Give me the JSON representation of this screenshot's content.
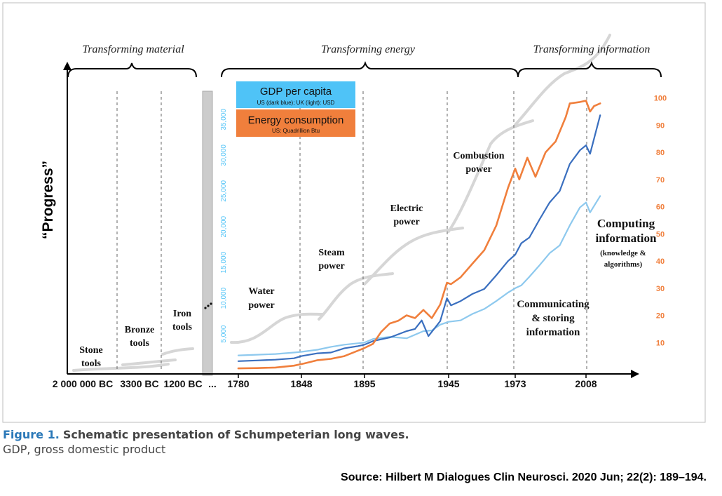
{
  "chart_data": {
    "type": "line",
    "ylabel": "“Progress”",
    "eras": [
      "Transforming material",
      "Transforming energy",
      "Transforming information"
    ],
    "x_ticks": [
      "2 000 000 BC",
      "3300 BC",
      "1200 BC",
      "...",
      "1780",
      "1848",
      "1895",
      "1945",
      "1973",
      "2008"
    ],
    "left_axis": {
      "color": "#4fc3f7",
      "ticks": [
        "5,000",
        "10,000",
        "15,000",
        "20,000",
        "25,000",
        "30,000",
        "35,000"
      ],
      "range": [
        0,
        37000
      ]
    },
    "right_axis": {
      "color": "#f07f3c",
      "ticks": [
        "10",
        "20",
        "30",
        "40",
        "50",
        "60",
        "70",
        "80",
        "90",
        "100"
      ],
      "range": [
        0,
        103
      ]
    },
    "legend": {
      "gdp_title": "GDP per capita",
      "gdp_sub": "US (dark blue); UK (light): USD",
      "energy_title": "Energy consumption",
      "energy_sub": "US: Quadrillion Btu"
    },
    "era_labels": {
      "stone": [
        "Stone",
        "tools"
      ],
      "bronze": [
        "Bronze",
        "tools"
      ],
      "iron": [
        "Iron",
        "tools"
      ],
      "water": [
        "Water",
        "power"
      ],
      "steam": [
        "Steam",
        "power"
      ],
      "electric": [
        "Electric",
        "power"
      ],
      "combustion": [
        "Combustion",
        "power"
      ],
      "communicating": [
        "Communicating",
        "& storing",
        "information"
      ],
      "computing": [
        "Computing",
        "information"
      ],
      "computing_sub": [
        "(knowledge &",
        "algorithms)"
      ]
    },
    "series": [
      {
        "name": "US",
        "unit": "USD",
        "axis": "left",
        "color": "#3a6fbf",
        "x": [
          1780,
          1800,
          1820,
          1840,
          1848,
          1860,
          1870,
          1880,
          1890,
          1895,
          1900,
          1910,
          1920,
          1925,
          1929,
          1933,
          1937,
          1940,
          1944,
          1946,
          1950,
          1955,
          1960,
          1965,
          1970,
          1973,
          1976,
          1980,
          1985,
          1990,
          1995,
          2000,
          2005,
          2008,
          2010,
          2015
        ],
        "y": [
          1200,
          1300,
          1400,
          1600,
          1900,
          2300,
          2400,
          3000,
          3300,
          3500,
          4000,
          4500,
          5400,
          5700,
          6900,
          4700,
          5900,
          6800,
          10000,
          9000,
          9600,
          10600,
          11300,
          13200,
          15200,
          16100,
          17700,
          18500,
          21000,
          23400,
          25000,
          28800,
          30700,
          31400,
          30200,
          35600
        ]
      },
      {
        "name": "UK",
        "unit": "USD",
        "axis": "left",
        "color": "#8ec9ee",
        "x": [
          1780,
          1800,
          1820,
          1840,
          1848,
          1860,
          1870,
          1880,
          1890,
          1895,
          1900,
          1910,
          1920,
          1925,
          1930,
          1935,
          1940,
          1945,
          1950,
          1955,
          1960,
          1965,
          1970,
          1973,
          1976,
          1980,
          1985,
          1990,
          1995,
          2000,
          2005,
          2008,
          2010,
          2015
        ],
        "y": [
          2000,
          2100,
          2200,
          2400,
          2500,
          2800,
          3200,
          3500,
          3700,
          3800,
          4300,
          4600,
          4400,
          4900,
          5400,
          5500,
          6300,
          6700,
          6900,
          7800,
          8500,
          9600,
          10800,
          11400,
          11800,
          13000,
          14600,
          16300,
          17400,
          20200,
          22700,
          23400,
          22000,
          24300
        ]
      },
      {
        "name": "Energy",
        "unit": "Quadrillion Btu",
        "axis": "right",
        "color": "#f07f3c",
        "x": [
          1780,
          1800,
          1820,
          1840,
          1850,
          1860,
          1870,
          1880,
          1890,
          1895,
          1900,
          1905,
          1910,
          1915,
          1920,
          1925,
          1930,
          1935,
          1940,
          1944,
          1946,
          1950,
          1955,
          1960,
          1965,
          1970,
          1973,
          1975,
          1979,
          1983,
          1988,
          1993,
          1998,
          2000,
          2005,
          2008,
          2010,
          2012,
          2015
        ],
        "y": [
          0.5,
          0.6,
          0.8,
          1.5,
          2.3,
          3.5,
          4.0,
          5.0,
          7.0,
          8.0,
          9.5,
          14.0,
          17.0,
          18.0,
          20.0,
          19.0,
          22.0,
          19.0,
          24.0,
          32.0,
          31.5,
          34.0,
          39.0,
          44.0,
          53.0,
          67.0,
          74.0,
          70.0,
          78.0,
          71.0,
          80.0,
          84.0,
          93.0,
          98.0,
          98.5,
          99.0,
          95.0,
          97.0,
          98.0
        ]
      }
    ]
  },
  "caption": {
    "figure_label": "Figure 1.",
    "title": "Schematic presentation of Schumpeterian long waves.",
    "note": "GDP, gross domestic product"
  },
  "source": "Source: Hilbert M Dialogues Clin Neurosci. 2020 Jun; 22(2): 189–194."
}
